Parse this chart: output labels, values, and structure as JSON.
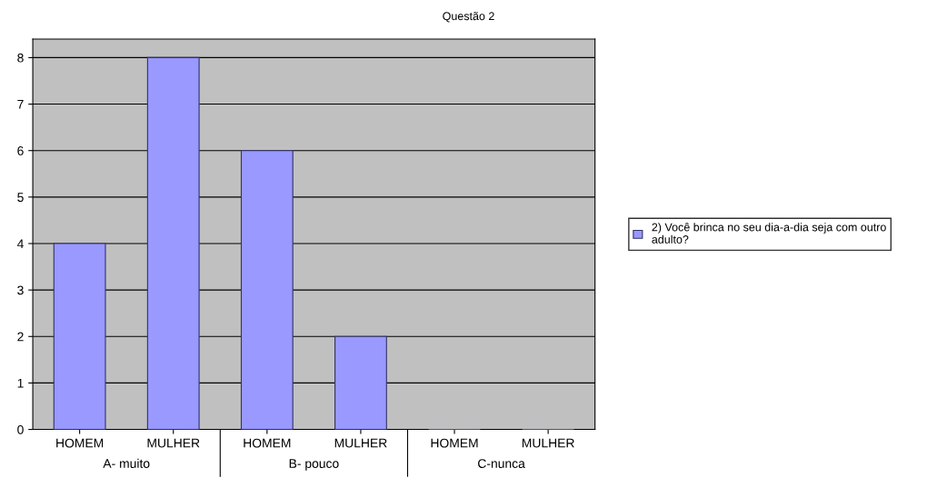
{
  "chart_data": {
    "type": "bar",
    "title": "Questão 2",
    "categories": [
      "HOMEM",
      "MULHER",
      "HOMEM",
      "MULHER",
      "HOMEM",
      "MULHER"
    ],
    "series": [
      {
        "name": "2) Você brinca no seu dia-a-dia seja com outro adulto?",
        "color": "#9999ff",
        "values": [
          4,
          8,
          6,
          2,
          0,
          0
        ]
      }
    ],
    "annotations": [
      "A- muito",
      "B- pouco",
      "C-nunca"
    ],
    "ylim": [
      0,
      8.4
    ],
    "yticks": [
      0,
      1,
      2,
      3,
      4,
      5,
      6,
      7,
      8
    ],
    "grid": "y",
    "legend": "right"
  }
}
